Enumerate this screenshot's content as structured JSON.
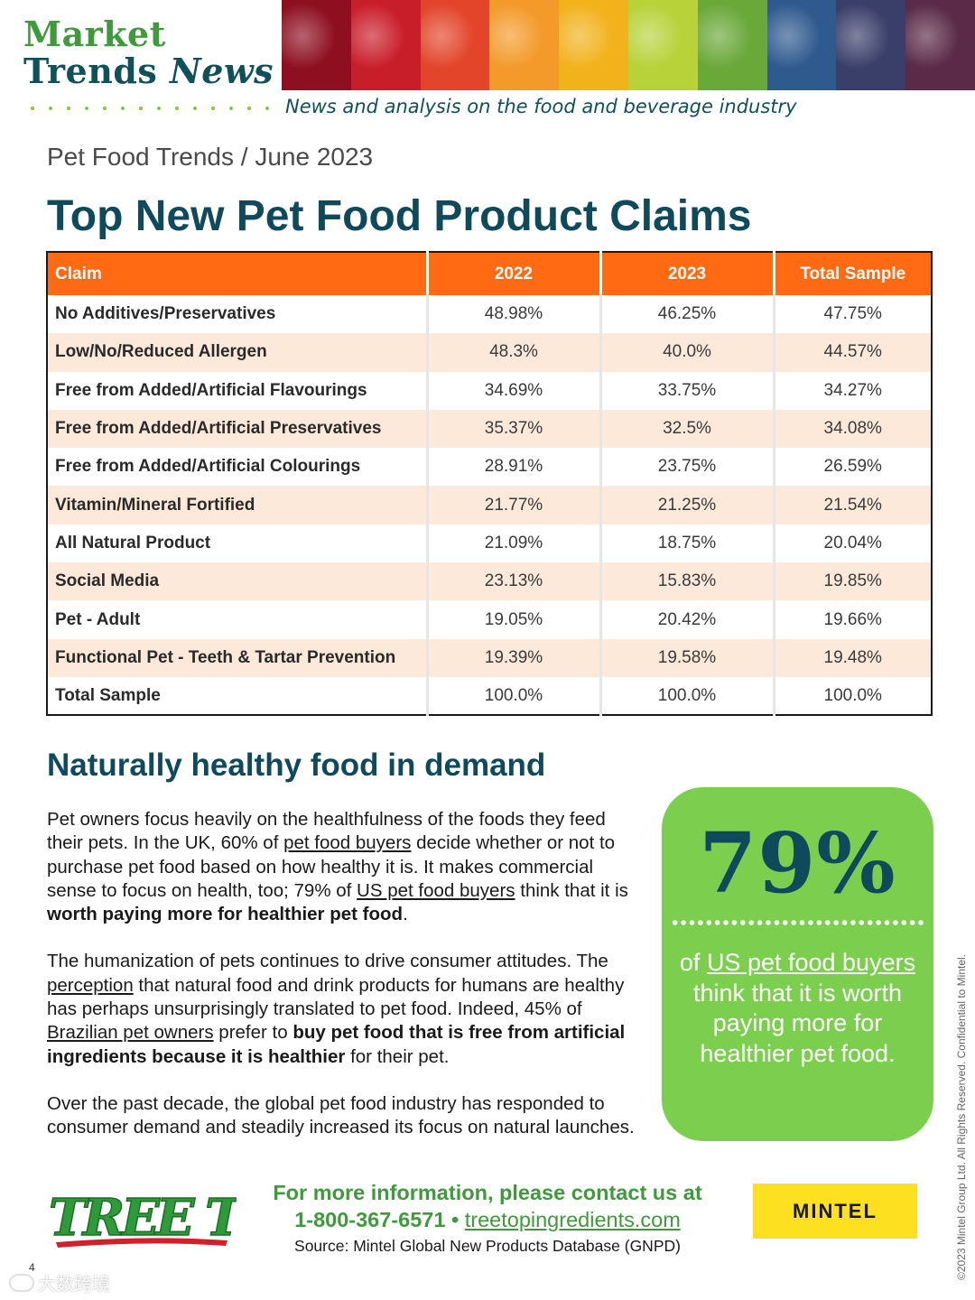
{
  "header": {
    "brand_line1": "Market",
    "brand_line2_a": "Trends ",
    "brand_line2_b": "News",
    "tagline": "News and analysis on the food and beverage industry",
    "banner_colors": [
      "#8e1020",
      "#c81e2a",
      "#e2452a",
      "#f39a2a",
      "#f2b21c",
      "#b8d23a",
      "#6aa83a",
      "#2f5a8e",
      "#3a3f6a",
      "#5a2a48"
    ]
  },
  "breadcrumb": "Pet Food Trends / June 2023",
  "page_title": "Top New Pet Food Product Claims",
  "table": {
    "headers": [
      "Claim",
      "2022",
      "2023",
      "Total Sample"
    ],
    "rows": [
      [
        "No Additives/Preservatives",
        "48.98%",
        "46.25%",
        "47.75%"
      ],
      [
        "Low/No/Reduced Allergen",
        "48.3%",
        "40.0%",
        "44.57%"
      ],
      [
        "Free from Added/Artificial Flavourings",
        "34.69%",
        "33.75%",
        "34.27%"
      ],
      [
        "Free from Added/Artificial Preservatives",
        "35.37%",
        "32.5%",
        "34.08%"
      ],
      [
        "Free from Added/Artificial Colourings",
        "28.91%",
        "23.75%",
        "26.59%"
      ],
      [
        "Vitamin/Mineral Fortified",
        "21.77%",
        "21.25%",
        "21.54%"
      ],
      [
        "All Natural Product",
        "21.09%",
        "18.75%",
        "20.04%"
      ],
      [
        "Social Media",
        "23.13%",
        "15.83%",
        "19.85%"
      ],
      [
        "Pet - Adult",
        "19.05%",
        "20.42%",
        "19.66%"
      ],
      [
        "Functional Pet - Teeth & Tartar Prevention",
        "19.39%",
        "19.58%",
        "19.48%"
      ],
      [
        "Total Sample",
        "100.0%",
        "100.0%",
        "100.0%"
      ]
    ]
  },
  "section": {
    "title": "Naturally healthy food in demand",
    "p1": {
      "t1": "Pet owners focus heavily on the healthfulness of the foods they feed their pets. In the UK, 60% of ",
      "link1": "pet food buyers",
      "t2": " decide whether or not to purchase pet food based on how healthy it is. It makes commercial sense to focus on health, too; 79% of ",
      "link2": "US pet food buyers",
      "t3": " think that it is ",
      "bold": "worth paying more for healthier pet food",
      "t4": "."
    },
    "p2": {
      "t1": "The humanization of pets continues to drive consumer attitudes. The ",
      "link1": "perception",
      "t2": " that natural food and drink products for humans are healthy has perhaps unsurprisingly translated to pet food. Indeed, 45% of ",
      "link2": "Brazilian pet owners",
      "t3": " prefer to ",
      "bold": "buy pet food that is free from artificial ingredients because it is healthier",
      "t4": " for their pet."
    },
    "p3": "Over the past decade, the global pet food industry has responded to consumer demand and steadily increased its focus on natural launches."
  },
  "stat": {
    "value": "79%",
    "pre": "of ",
    "link": "US pet food buyers",
    "post": " think that it is worth paying more for healthier pet food."
  },
  "footer": {
    "contact_line1": "For more information, please contact us at",
    "phone": "1-800-367-6571",
    "bullet": " • ",
    "url": "treetopingredients.com",
    "source": "Source: Mintel Global New Products Database (GNPD)",
    "treetop_logo": "TREE TOP",
    "mintel_logo": "MINTEL",
    "copyright": "©2023 Mintel Group Ltd. All Rights Reserved. Confidential to Mintel.",
    "page_number": "4",
    "watermark": "大数跨境"
  },
  "colors": {
    "accent_orange": "#ff6a13",
    "row_alt": "#fde9da",
    "title_teal": "#0f4a5c",
    "brand_green": "#3f9a3c",
    "stat_green": "#7ccf4e",
    "mintel_yellow": "#fde020"
  }
}
